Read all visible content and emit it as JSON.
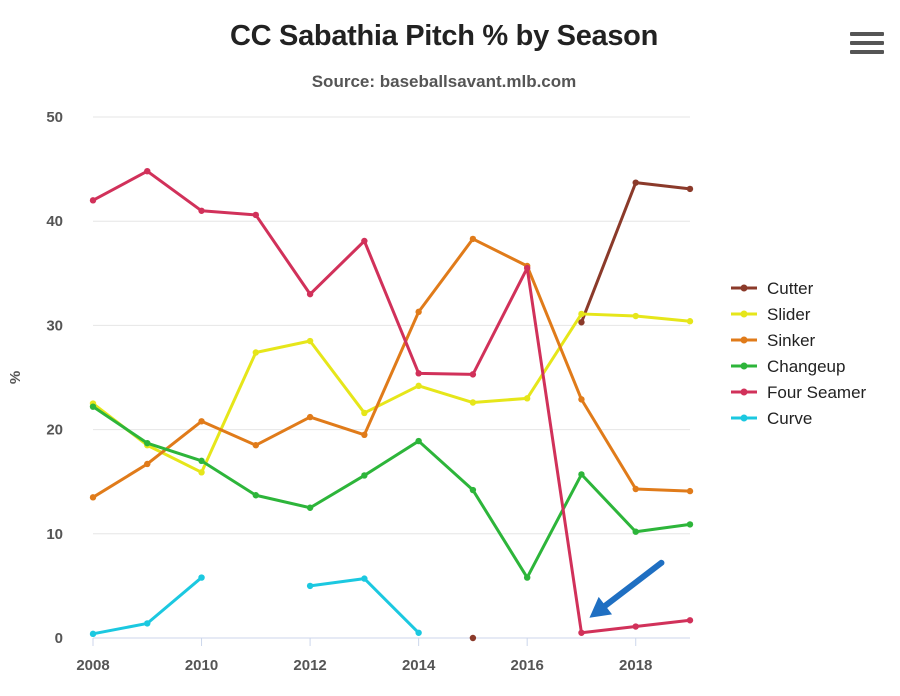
{
  "chart": {
    "title": "CC Sabathia Pitch % by Season",
    "subtitle": "Source: baseballsavant.mlb.com",
    "menu_icon": "hamburger-menu-icon"
  },
  "chart_data": {
    "type": "line",
    "title": "CC Sabathia Pitch % by Season",
    "subtitle": "Source: baseballsavant.mlb.com",
    "xlabel": "",
    "ylabel": "%",
    "xlim": [
      2008,
      2019
    ],
    "ylim": [
      0,
      50
    ],
    "x_ticks": [
      2008,
      2010,
      2012,
      2014,
      2016,
      2018
    ],
    "y_ticks": [
      0,
      10,
      20,
      30,
      40,
      50
    ],
    "grid": true,
    "legend_position": "right",
    "x": [
      2008,
      2009,
      2010,
      2011,
      2012,
      2013,
      2014,
      2015,
      2016,
      2017,
      2018,
      2019
    ],
    "series": [
      {
        "name": "Cutter",
        "color": "#8B3A2A",
        "values": [
          null,
          null,
          null,
          null,
          null,
          null,
          null,
          0.0,
          null,
          30.3,
          43.7,
          43.1
        ]
      },
      {
        "name": "Slider",
        "color": "#E6E61A",
        "values": [
          22.5,
          18.5,
          15.9,
          27.4,
          28.5,
          21.6,
          24.2,
          22.6,
          23.0,
          31.1,
          30.9,
          30.4
        ]
      },
      {
        "name": "Sinker",
        "color": "#E07B1A",
        "values": [
          13.5,
          16.7,
          20.8,
          18.5,
          21.2,
          19.5,
          31.3,
          38.3,
          35.7,
          22.9,
          14.3,
          14.1
        ]
      },
      {
        "name": "Changeup",
        "color": "#2DB53A",
        "values": [
          22.2,
          18.7,
          17.0,
          13.7,
          12.5,
          15.6,
          18.9,
          14.2,
          5.8,
          15.7,
          10.2,
          10.9
        ]
      },
      {
        "name": "Four Seamer",
        "color": "#D1315A",
        "values": [
          42.0,
          44.8,
          41.0,
          40.6,
          33.0,
          38.1,
          25.4,
          25.3,
          35.5,
          0.5,
          1.1,
          1.7
        ]
      },
      {
        "name": "Curve",
        "color": "#1BC8E0",
        "values": [
          0.4,
          1.4,
          5.8,
          null,
          5.0,
          5.7,
          0.5,
          null,
          null,
          null,
          null,
          null
        ]
      }
    ],
    "annotations": [
      {
        "type": "arrow",
        "color": "#1F6FC2",
        "points_to": {
          "x": 2017,
          "y": 0.5
        }
      }
    ]
  }
}
